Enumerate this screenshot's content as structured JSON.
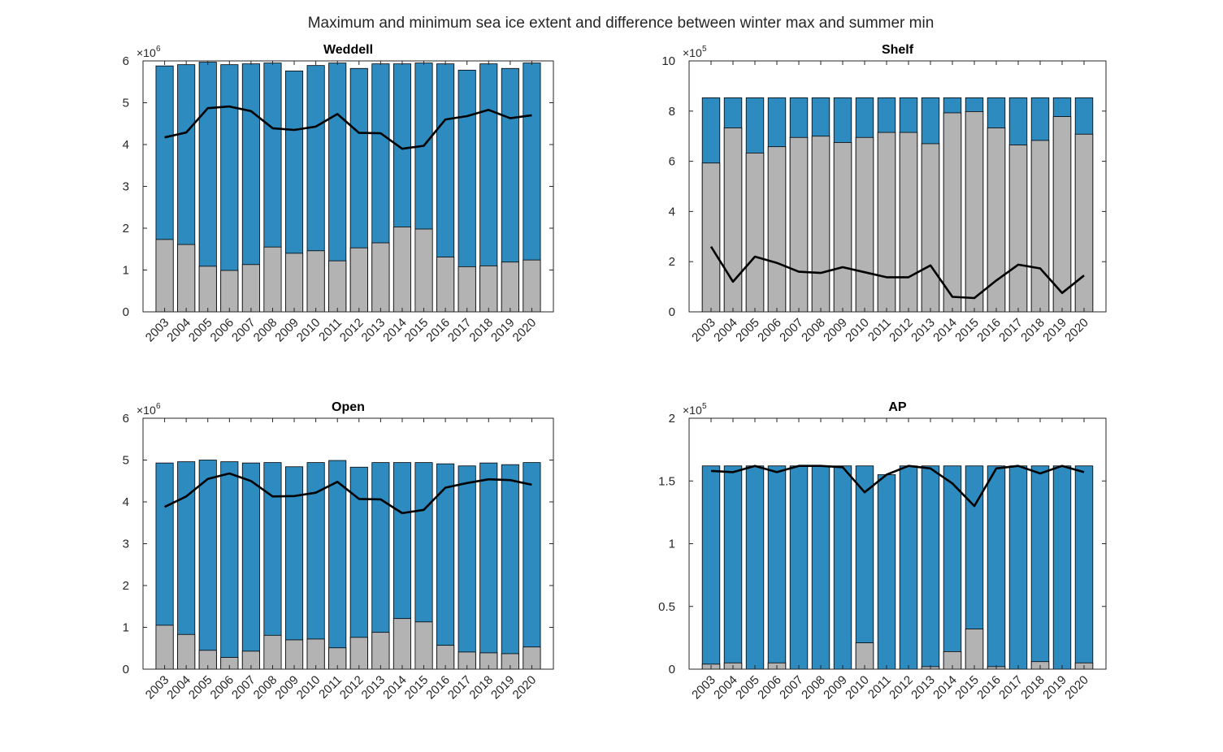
{
  "figure": {
    "title": "Maximum and minimum sea ice extent and difference between winter max and summer min"
  },
  "colors": {
    "max_bar": "#2E8BC0",
    "min_bar": "#B3B3B3",
    "difference_line": "#000000",
    "axes": "#262626"
  },
  "chart_data": [
    {
      "type": "bar",
      "title": "Weddell",
      "multiplier": "×10",
      "multiplier_exp": "6",
      "ylim": [
        0,
        6
      ],
      "yticks": [
        "0",
        "1",
        "2",
        "3",
        "4",
        "5",
        "6"
      ],
      "categories": [
        "2003",
        "2004",
        "2005",
        "2006",
        "2007",
        "2008",
        "2009",
        "2010",
        "2011",
        "2012",
        "2013",
        "2014",
        "2015",
        "2016",
        "2017",
        "2018",
        "2019",
        "2020"
      ],
      "series": [
        {
          "values": [
            5.88,
            5.91,
            5.97,
            5.91,
            5.93,
            5.95,
            5.76,
            5.89,
            5.95,
            5.82,
            5.93,
            5.93,
            5.95,
            5.93,
            5.78,
            5.93,
            5.82,
            5.95
          ]
        },
        {
          "values": [
            1.73,
            1.61,
            1.09,
            0.99,
            1.13,
            1.55,
            1.4,
            1.46,
            1.22,
            1.53,
            1.65,
            2.03,
            1.98,
            1.31,
            1.08,
            1.1,
            1.19,
            1.24
          ]
        },
        {
          "values": [
            4.17,
            4.29,
            4.87,
            4.91,
            4.8,
            4.39,
            4.35,
            4.43,
            4.73,
            4.28,
            4.27,
            3.9,
            3.97,
            4.6,
            4.68,
            4.83,
            4.63,
            4.7
          ]
        }
      ]
    },
    {
      "type": "bar",
      "title": "Shelf",
      "multiplier": "×10",
      "multiplier_exp": "5",
      "ylim": [
        0,
        10
      ],
      "yticks": [
        "0",
        "2",
        "4",
        "6",
        "8",
        "10"
      ],
      "categories": [
        "2003",
        "2004",
        "2005",
        "2006",
        "2007",
        "2008",
        "2009",
        "2010",
        "2011",
        "2012",
        "2013",
        "2014",
        "2015",
        "2016",
        "2017",
        "2018",
        "2019",
        "2020"
      ],
      "series": [
        {
          "values": [
            8.53,
            8.53,
            8.53,
            8.53,
            8.53,
            8.53,
            8.53,
            8.53,
            8.53,
            8.53,
            8.53,
            8.53,
            8.53,
            8.53,
            8.53,
            8.53,
            8.53,
            8.53
          ]
        },
        {
          "values": [
            5.93,
            7.33,
            6.33,
            6.58,
            6.95,
            7.0,
            6.75,
            6.95,
            7.15,
            7.15,
            6.7,
            7.93,
            7.98,
            7.33,
            6.65,
            6.83,
            7.78,
            7.08
          ]
        },
        {
          "values": [
            2.6,
            1.2,
            2.2,
            1.95,
            1.6,
            1.55,
            1.78,
            1.58,
            1.38,
            1.38,
            1.85,
            0.6,
            0.55,
            1.25,
            1.88,
            1.73,
            0.75,
            1.45
          ]
        }
      ]
    },
    {
      "type": "bar",
      "title": "Open",
      "multiplier": "×10",
      "multiplier_exp": "6",
      "ylim": [
        0,
        6
      ],
      "yticks": [
        "0",
        "1",
        "2",
        "3",
        "4",
        "5",
        "6"
      ],
      "categories": [
        "2003",
        "2004",
        "2005",
        "2006",
        "2007",
        "2008",
        "2009",
        "2010",
        "2011",
        "2012",
        "2013",
        "2014",
        "2015",
        "2016",
        "2017",
        "2018",
        "2019",
        "2020"
      ],
      "series": [
        {
          "values": [
            4.93,
            4.96,
            5.0,
            4.96,
            4.93,
            4.94,
            4.84,
            4.94,
            4.99,
            4.83,
            4.94,
            4.94,
            4.94,
            4.91,
            4.86,
            4.93,
            4.89,
            4.94
          ]
        },
        {
          "values": [
            1.05,
            0.83,
            0.45,
            0.28,
            0.43,
            0.81,
            0.7,
            0.72,
            0.51,
            0.76,
            0.88,
            1.21,
            1.13,
            0.57,
            0.41,
            0.39,
            0.37,
            0.53
          ]
        },
        {
          "values": [
            3.88,
            4.13,
            4.55,
            4.68,
            4.5,
            4.13,
            4.14,
            4.22,
            4.48,
            4.07,
            4.06,
            3.73,
            3.81,
            4.34,
            4.45,
            4.54,
            4.52,
            4.41
          ]
        }
      ]
    },
    {
      "type": "bar",
      "title": "AP",
      "multiplier": "×10",
      "multiplier_exp": "5",
      "ylim": [
        0,
        2
      ],
      "yticks": [
        "0",
        "0.5",
        "1",
        "1.5",
        "2"
      ],
      "categories": [
        "2003",
        "2004",
        "2005",
        "2006",
        "2007",
        "2008",
        "2009",
        "2010",
        "2011",
        "2012",
        "2013",
        "2014",
        "2015",
        "2016",
        "2017",
        "2018",
        "2019",
        "2020"
      ],
      "series": [
        {
          "values": [
            1.62,
            1.62,
            1.62,
            1.62,
            1.62,
            1.62,
            1.62,
            1.62,
            1.55,
            1.62,
            1.62,
            1.62,
            1.62,
            1.62,
            1.62,
            1.62,
            1.62,
            1.62
          ]
        },
        {
          "values": [
            0.04,
            0.05,
            0.0,
            0.05,
            0.0,
            0.0,
            0.0,
            0.21,
            0.0,
            0.0,
            0.02,
            0.14,
            0.32,
            0.02,
            0.0,
            0.06,
            0.0,
            0.05
          ]
        },
        {
          "values": [
            1.58,
            1.57,
            1.62,
            1.57,
            1.62,
            1.62,
            1.61,
            1.41,
            1.55,
            1.62,
            1.6,
            1.48,
            1.3,
            1.6,
            1.62,
            1.56,
            1.62,
            1.57
          ]
        }
      ]
    }
  ]
}
